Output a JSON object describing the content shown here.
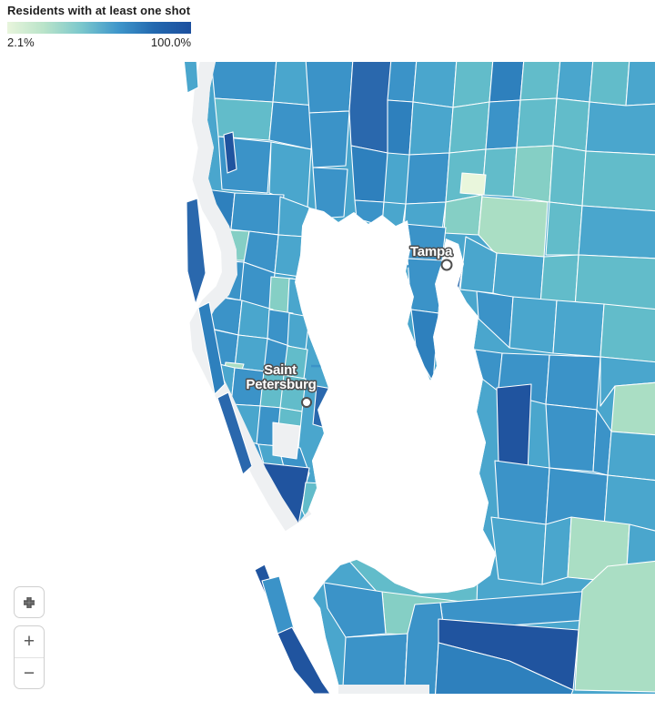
{
  "legend": {
    "title": "Residents with at least one shot",
    "min_label": "2.1%",
    "max_label": "100.0%",
    "gradient": [
      "#e8f5dc",
      "#b9e3c9",
      "#7cc8cc",
      "#3f97cb",
      "#2268af",
      "#1c4f9e"
    ]
  },
  "map": {
    "cities": [
      {
        "name": "Tampa"
      },
      {
        "name": "Saint Petersburg",
        "line1": "Saint",
        "line2": "Petersburg"
      }
    ]
  },
  "controls": {
    "fullscreen_icon": "expand-collapse",
    "zoom_in": "+",
    "zoom_out": "−"
  },
  "palette": {
    "g0": "#e9f6dc",
    "g1": "#cfecc8",
    "g2": "#aadec4",
    "g3": "#85cfc5",
    "g4": "#62bcca",
    "g5": "#4aa6cd",
    "g6": "#3b93c8",
    "g7": "#2e80bd",
    "g8": "#2a68ad",
    "g9": "#20549f",
    "water": "#ffffff",
    "offshore": "#eef0f2",
    "tract_stroke": "#ffffff",
    "label_halo": "#4e4e4e",
    "control_icon": "#5a5a5a"
  }
}
